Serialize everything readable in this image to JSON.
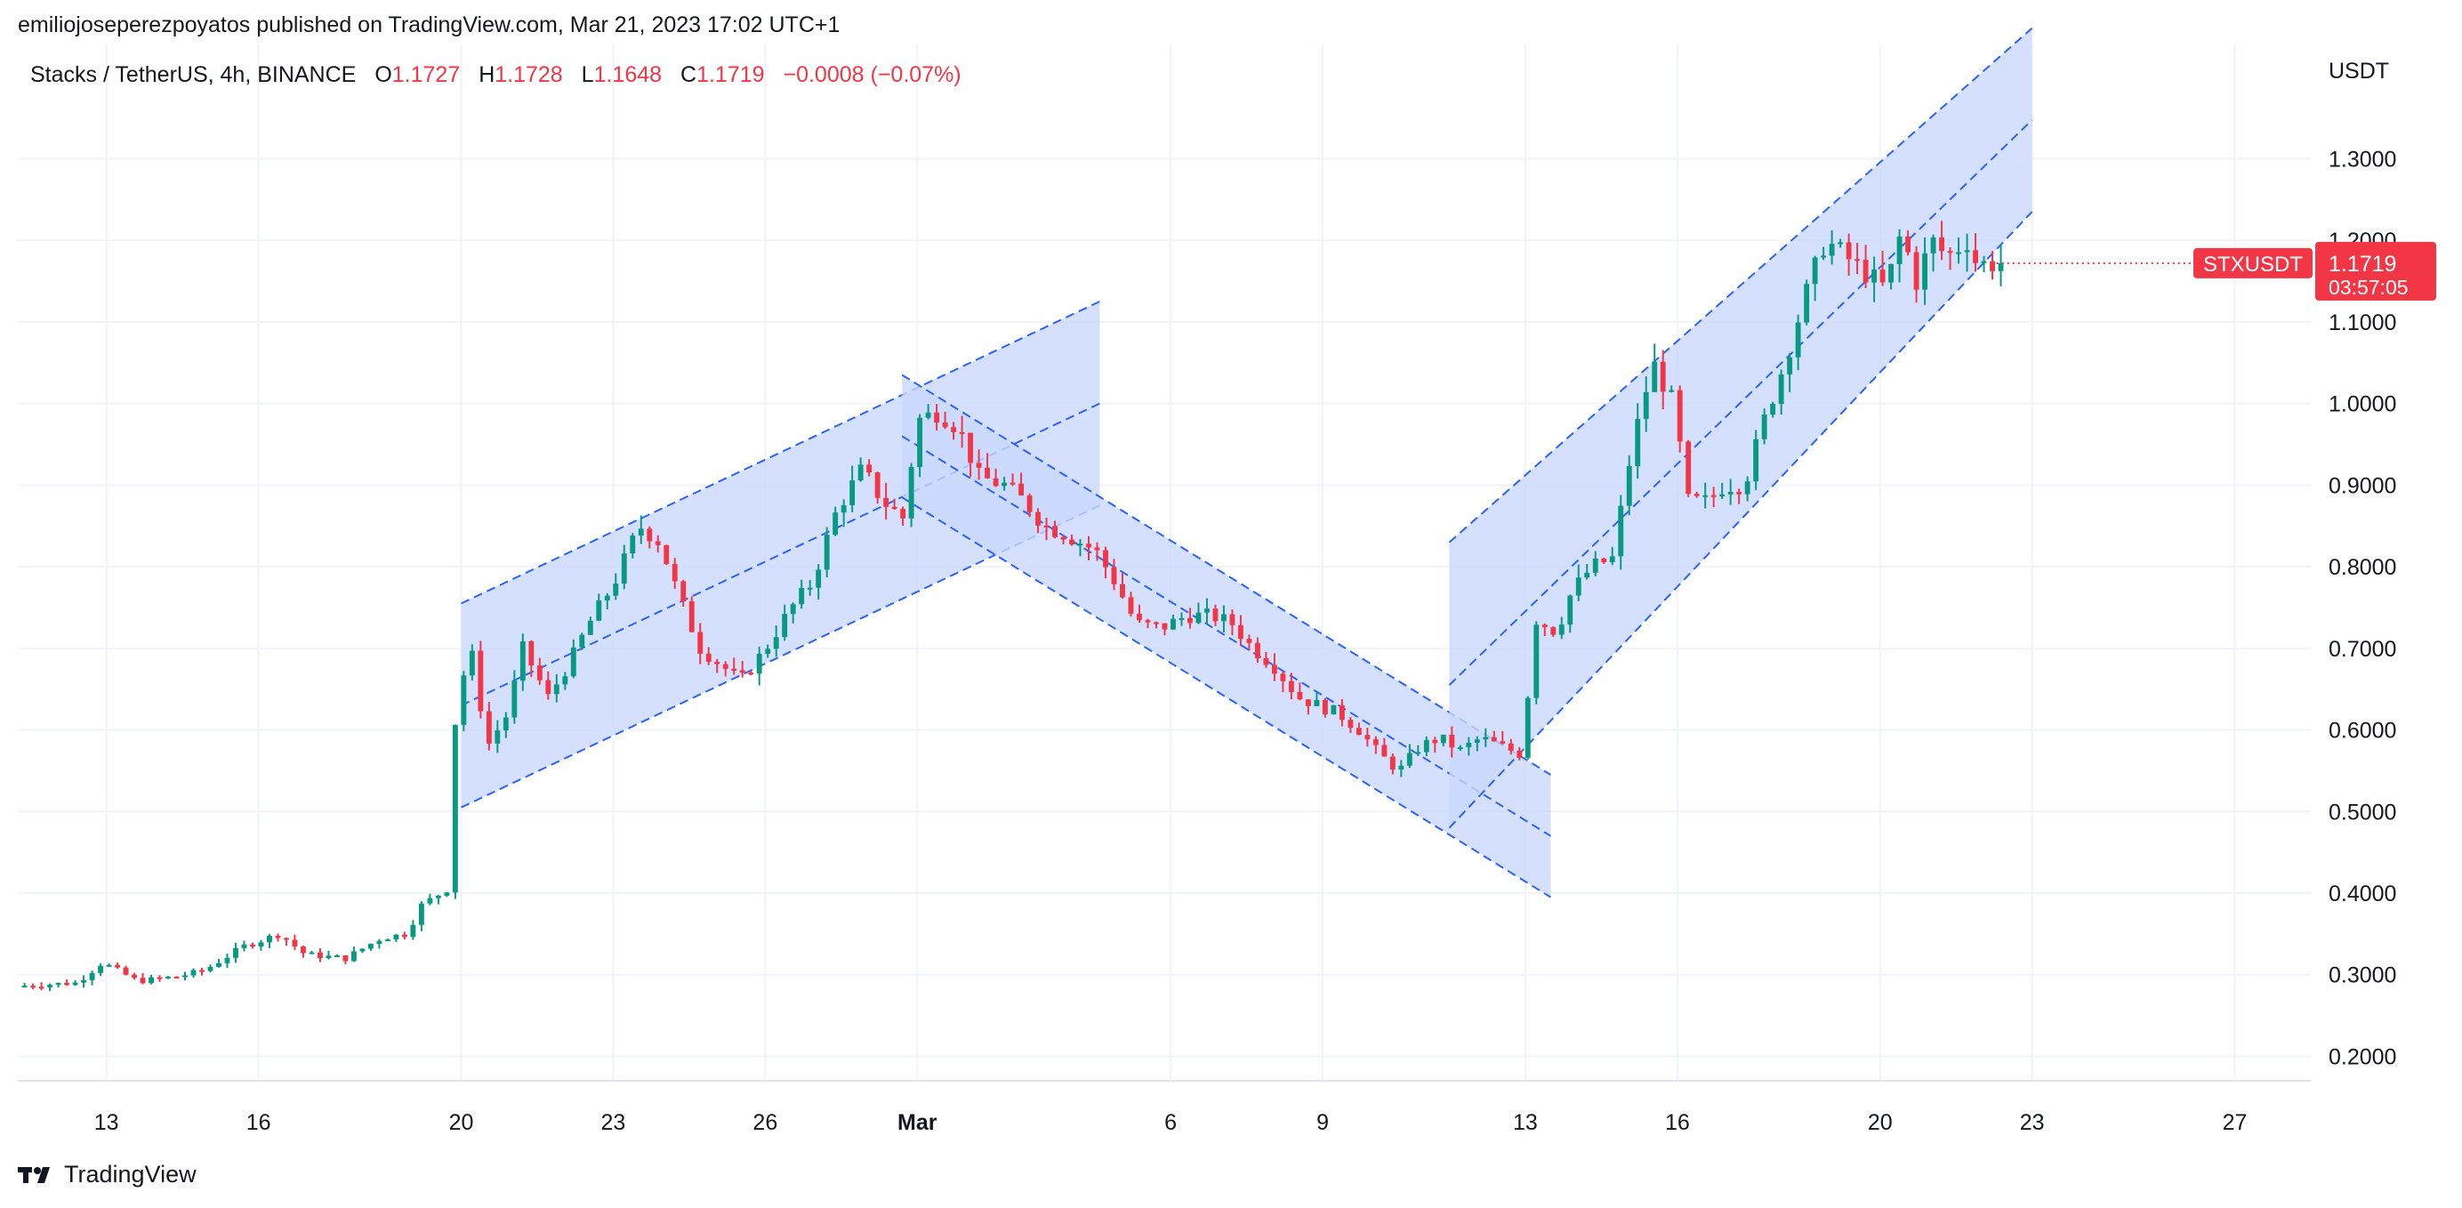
{
  "publisher": "emiliojoseperezpoyatos published on TradingView.com, Mar 21, 2023 17:02 UTC+1",
  "symbol_line": "Stacks / TetherUS, 4h, BINANCE",
  "ohlc": {
    "o_label": "O",
    "o": "1.1727",
    "h_label": "H",
    "h": "1.1728",
    "l_label": "L",
    "l": "1.1648",
    "c_label": "C",
    "c": "1.1719",
    "change": "−0.0008 (−0.07%)"
  },
  "brand": "TradingView",
  "colors": {
    "up": "#089981",
    "down": "#f23645",
    "channel_fill": "#cbd8ff",
    "channel_line": "#2962ff",
    "grid": "#f0f3fa"
  },
  "chart_data": {
    "type": "candlestick",
    "pair": "STXUSDT",
    "timeframe": "4h",
    "y_axis": {
      "unit": "USDT",
      "ticks": [
        "0.2000",
        "0.3000",
        "0.4000",
        "0.5000",
        "0.6000",
        "0.7000",
        "0.8000",
        "0.9000",
        "1.0000",
        "1.1000",
        "1.2000",
        "1.3000"
      ],
      "range": [
        0.17,
        1.44
      ]
    },
    "x_axis": {
      "ticks": [
        {
          "label": "13",
          "day": 13
        },
        {
          "label": "16",
          "day": 16
        },
        {
          "label": "20",
          "day": 20
        },
        {
          "label": "23",
          "day": 23
        },
        {
          "label": "26",
          "day": 26
        },
        {
          "label": "Mar",
          "day": 29,
          "bold": true
        },
        {
          "label": "6",
          "day": 34
        },
        {
          "label": "9",
          "day": 37
        },
        {
          "label": "13",
          "day": 41
        },
        {
          "label": "16",
          "day": 44
        },
        {
          "label": "20",
          "day": 48
        },
        {
          "label": "23",
          "day": 51
        },
        {
          "label": "27",
          "day": 55
        }
      ],
      "range_days": [
        11.25,
        56.5
      ]
    },
    "last_price": {
      "label": "STXUSDT",
      "value": "1.1719",
      "countdown": "03:57:05"
    },
    "channels": [
      {
        "upper": [
          [
            20.0,
            0.755
          ],
          [
            32.6,
            1.125
          ]
        ],
        "lower": [
          [
            20.0,
            0.505
          ],
          [
            32.6,
            0.875
          ]
        ],
        "mid": true
      },
      {
        "upper": [
          [
            28.7,
            1.035
          ],
          [
            41.5,
            0.545
          ]
        ],
        "lower": [
          [
            28.7,
            0.885
          ],
          [
            41.5,
            0.395
          ]
        ],
        "mid": true
      },
      {
        "upper": [
          [
            39.5,
            0.83
          ],
          [
            51.0,
            1.46
          ]
        ],
        "lower": [
          [
            39.5,
            0.48
          ],
          [
            51.0,
            1.235
          ]
        ],
        "mid": true
      }
    ],
    "price_path": [
      [
        11.3,
        0.286
      ],
      [
        12.5,
        0.29
      ],
      [
        13.0,
        0.315
      ],
      [
        13.7,
        0.292
      ],
      [
        14.5,
        0.298
      ],
      [
        15.0,
        0.305
      ],
      [
        15.8,
        0.335
      ],
      [
        16.5,
        0.35
      ],
      [
        17.0,
        0.325
      ],
      [
        17.8,
        0.32
      ],
      [
        18.5,
        0.345
      ],
      [
        19.0,
        0.35
      ],
      [
        19.3,
        0.385
      ],
      [
        19.8,
        0.405
      ],
      [
        20.0,
        0.65
      ],
      [
        20.3,
        0.69
      ],
      [
        20.6,
        0.58
      ],
      [
        21.0,
        0.62
      ],
      [
        21.3,
        0.7
      ],
      [
        21.8,
        0.64
      ],
      [
        22.2,
        0.68
      ],
      [
        22.6,
        0.73
      ],
      [
        23.1,
        0.78
      ],
      [
        23.6,
        0.85
      ],
      [
        24.0,
        0.83
      ],
      [
        24.4,
        0.76
      ],
      [
        24.8,
        0.7
      ],
      [
        25.2,
        0.68
      ],
      [
        25.6,
        0.66
      ],
      [
        26.1,
        0.7
      ],
      [
        26.6,
        0.75
      ],
      [
        27.0,
        0.78
      ],
      [
        27.5,
        0.87
      ],
      [
        28.0,
        0.92
      ],
      [
        28.4,
        0.88
      ],
      [
        28.8,
        0.86
      ],
      [
        29.1,
        0.98
      ],
      [
        29.5,
        0.99
      ],
      [
        29.9,
        0.97
      ],
      [
        30.3,
        0.91
      ],
      [
        30.8,
        0.9
      ],
      [
        31.2,
        0.88
      ],
      [
        31.6,
        0.85
      ],
      [
        32.0,
        0.84
      ],
      [
        32.6,
        0.82
      ],
      [
        33.0,
        0.78
      ],
      [
        33.4,
        0.73
      ],
      [
        33.9,
        0.725
      ],
      [
        34.4,
        0.74
      ],
      [
        34.9,
        0.74
      ],
      [
        35.3,
        0.73
      ],
      [
        35.7,
        0.7
      ],
      [
        36.1,
        0.68
      ],
      [
        36.6,
        0.64
      ],
      [
        37.0,
        0.63
      ],
      [
        37.4,
        0.62
      ],
      [
        37.8,
        0.6
      ],
      [
        38.2,
        0.57
      ],
      [
        38.6,
        0.55
      ],
      [
        39.0,
        0.58
      ],
      [
        39.4,
        0.59
      ],
      [
        39.8,
        0.575
      ],
      [
        40.2,
        0.59
      ],
      [
        40.6,
        0.58
      ],
      [
        41.0,
        0.57
      ],
      [
        41.3,
        0.735
      ],
      [
        41.7,
        0.72
      ],
      [
        42.0,
        0.77
      ],
      [
        42.4,
        0.8
      ],
      [
        42.8,
        0.81
      ],
      [
        43.2,
        0.95
      ],
      [
        43.6,
        1.05
      ],
      [
        44.0,
        1.0
      ],
      [
        44.3,
        0.88
      ],
      [
        44.7,
        0.88
      ],
      [
        45.0,
        0.9
      ],
      [
        45.4,
        0.9
      ],
      [
        45.8,
        0.98
      ],
      [
        46.2,
        1.05
      ],
      [
        46.6,
        1.13
      ],
      [
        47.0,
        1.2
      ],
      [
        47.4,
        1.18
      ],
      [
        47.8,
        1.16
      ],
      [
        48.2,
        1.14
      ],
      [
        48.5,
        1.21
      ],
      [
        48.8,
        1.15
      ],
      [
        49.1,
        1.2
      ],
      [
        49.4,
        1.18
      ],
      [
        49.8,
        1.2
      ],
      [
        50.0,
        1.17
      ],
      [
        50.3,
        1.1719
      ]
    ]
  }
}
